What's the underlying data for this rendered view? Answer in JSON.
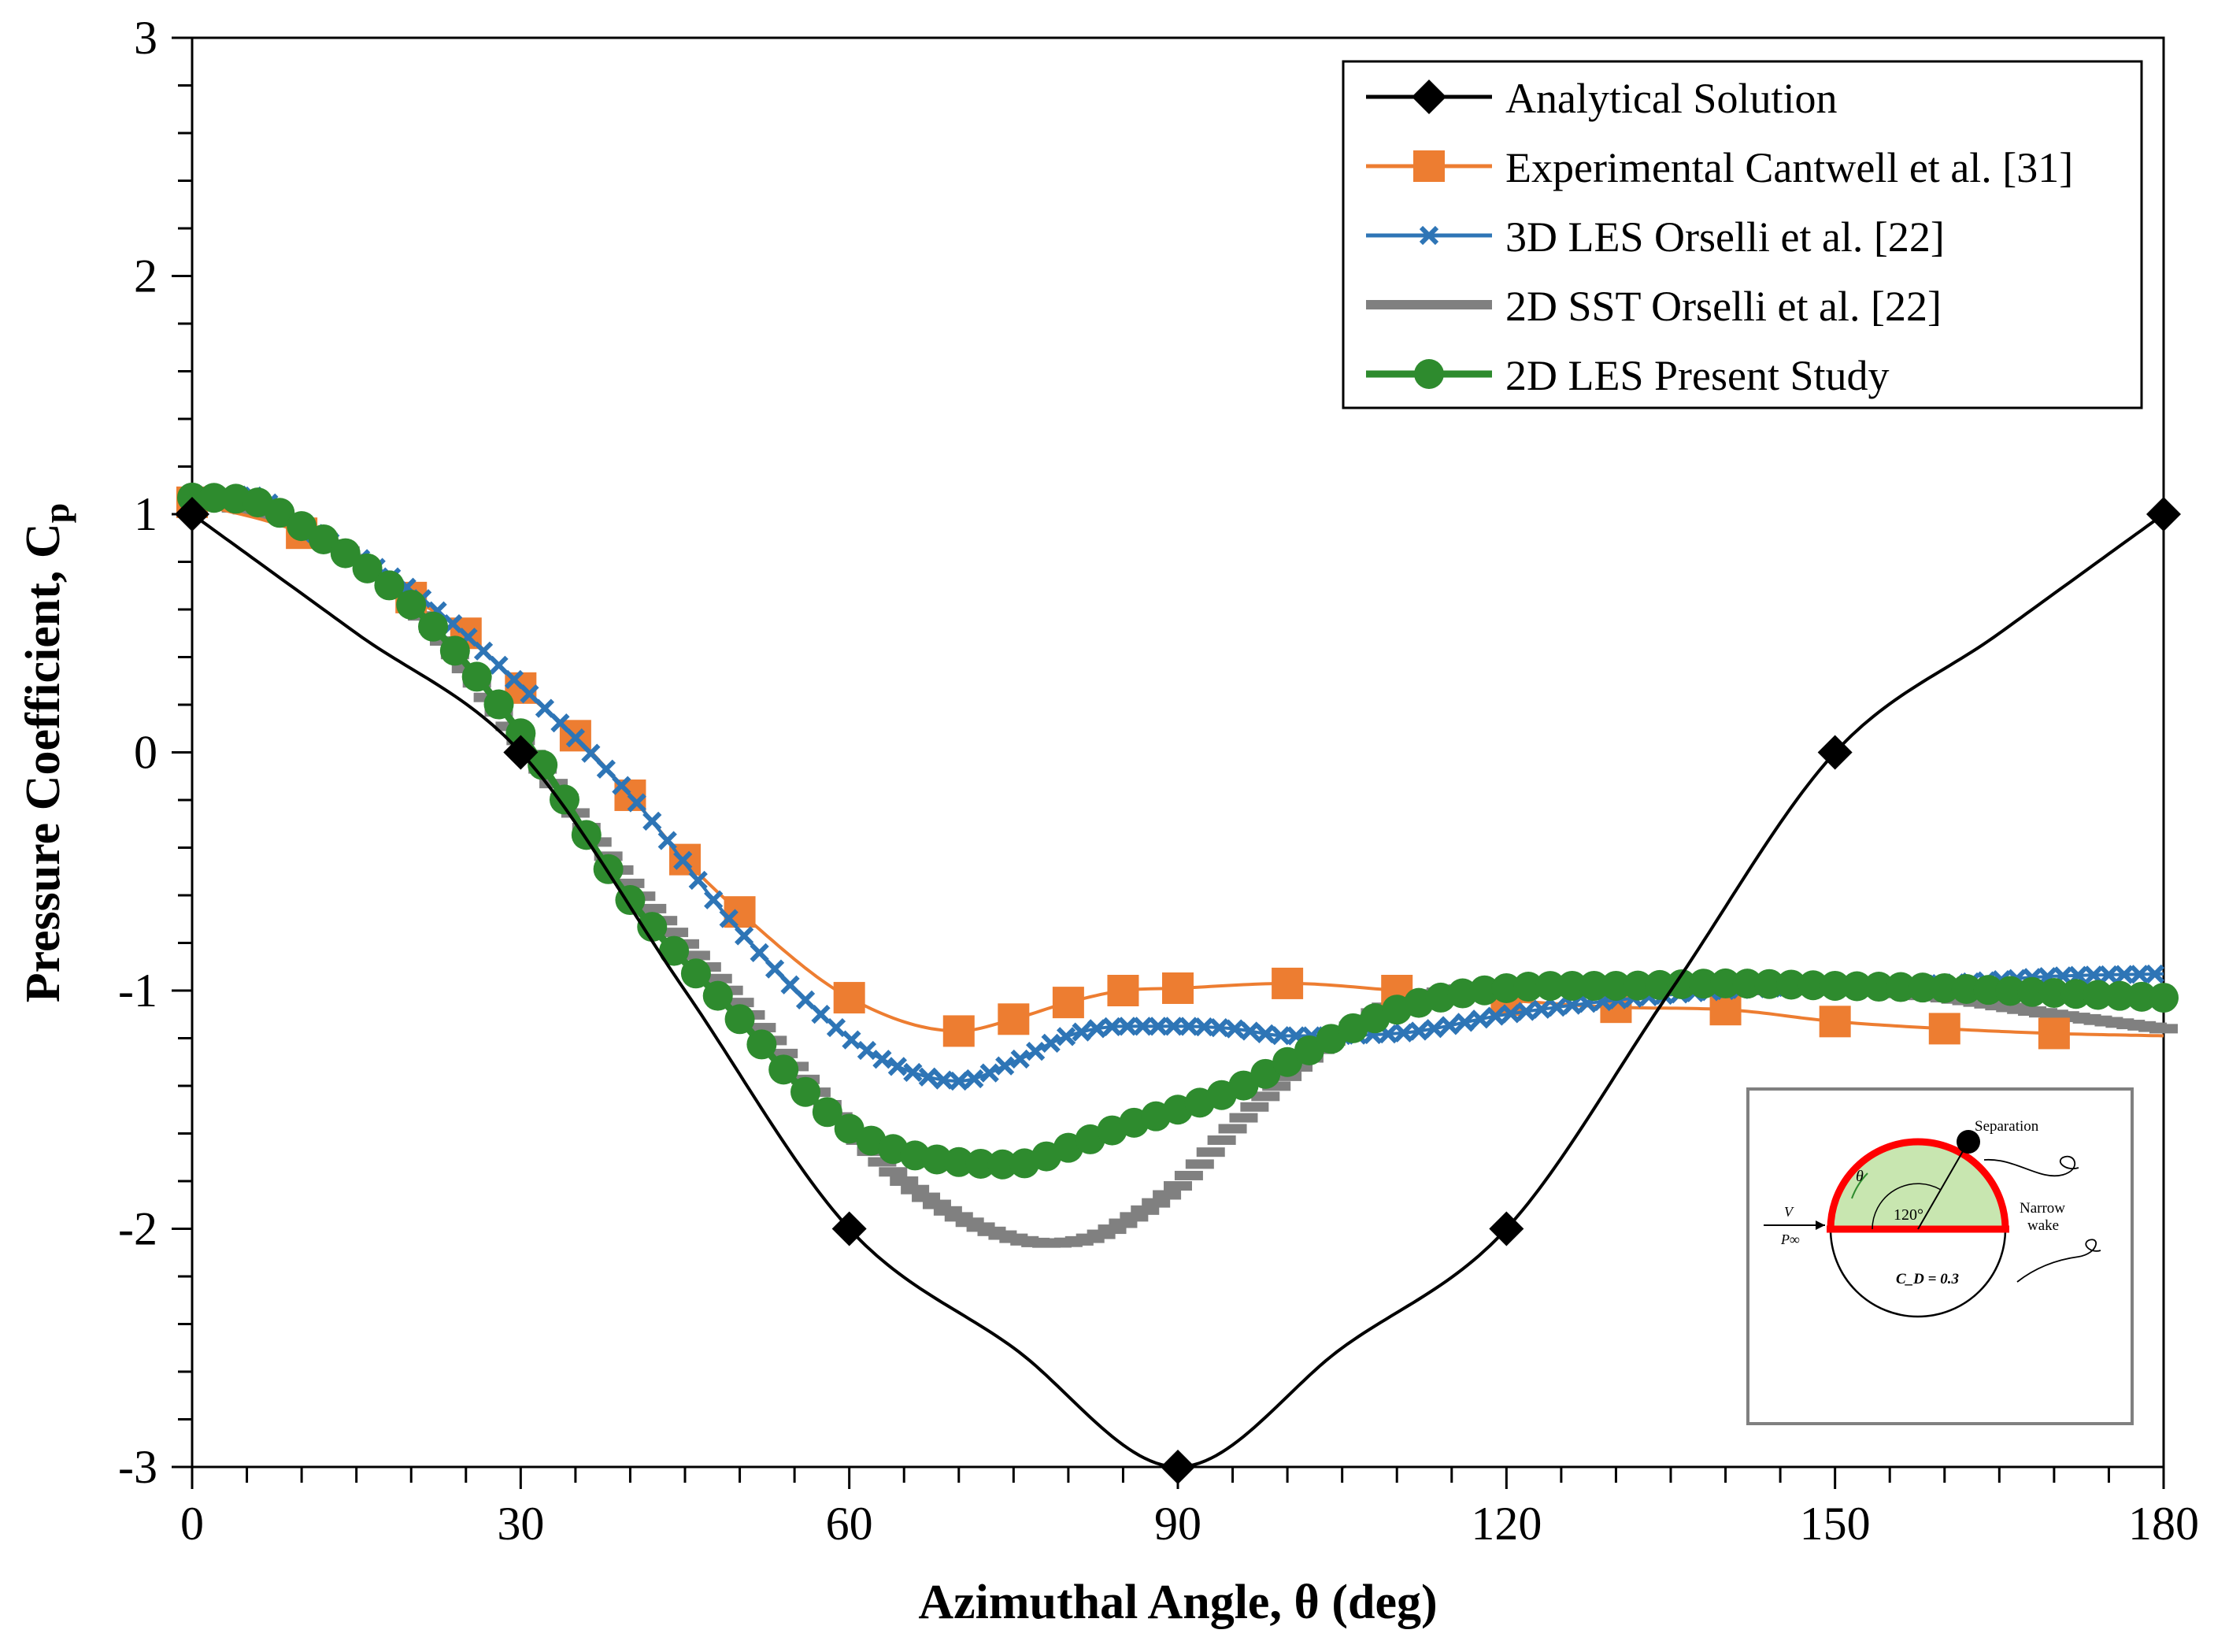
{
  "chart_data": {
    "type": "line",
    "xlabel": "Azimuthal Angle, θ (deg)",
    "ylabel": "Pressure Coefficient, C",
    "ylabel_subscript": "p",
    "xlim": [
      0,
      180
    ],
    "ylim": [
      -3,
      3
    ],
    "xticks": [
      0,
      30,
      60,
      90,
      120,
      150,
      180
    ],
    "xtick_labels": [
      "0",
      "30",
      "60",
      "90",
      "120",
      "150",
      "180"
    ],
    "yticks": [
      -3,
      -2,
      -1,
      0,
      1,
      2,
      3
    ],
    "ytick_labels": [
      "-3",
      "-2",
      "-1",
      "0",
      "1",
      "2",
      "3"
    ],
    "legend_position": "top-right",
    "series": [
      {
        "name": "Analytical Solution",
        "color": "#000000",
        "marker": "diamond",
        "x": [
          0,
          15,
          30,
          45,
          60,
          75,
          90,
          105,
          120,
          135,
          150,
          165,
          180
        ],
        "y": [
          1.0,
          0.5,
          0.0,
          -1.0,
          -2.0,
          -2.5,
          -3.0,
          -2.5,
          -2.0,
          -1.0,
          0.0,
          0.5,
          1.0
        ],
        "marker_x": [
          0,
          30,
          60,
          90,
          120,
          150,
          180
        ],
        "marker_y": [
          1.0,
          0.0,
          -2.0,
          -3.0,
          -2.0,
          0.0,
          1.0
        ]
      },
      {
        "name": "Experimental Cantwell et al. [31]",
        "color": "#ED7D31",
        "marker": "square",
        "x": [
          0,
          10,
          20,
          25,
          30,
          35,
          40,
          45,
          50,
          60,
          70,
          75,
          80,
          85,
          90,
          100,
          110,
          120,
          130,
          140,
          150,
          160,
          170,
          180
        ],
        "y": [
          1.05,
          0.92,
          0.65,
          0.5,
          0.27,
          0.07,
          -0.18,
          -0.45,
          -0.67,
          -1.03,
          -1.17,
          -1.12,
          -1.05,
          -1.0,
          -0.99,
          -0.97,
          -1.0,
          -1.04,
          -1.07,
          -1.08,
          -1.13,
          -1.16,
          -1.18,
          -1.19
        ],
        "marker_x": [
          0,
          10,
          20,
          25,
          30,
          35,
          40,
          45,
          50,
          60,
          70,
          75,
          80,
          85,
          90,
          100,
          110,
          120,
          130,
          140,
          150,
          160,
          170
        ],
        "marker_y": [
          1.05,
          0.92,
          0.65,
          0.5,
          0.27,
          0.07,
          -0.18,
          -0.45,
          -0.67,
          -1.03,
          -1.17,
          -1.12,
          -1.05,
          -1.0,
          -0.99,
          -0.97,
          -1.0,
          -1.04,
          -1.07,
          -1.08,
          -1.13,
          -1.16,
          -1.18
        ]
      },
      {
        "name": "3D LES Orselli et al. [22]",
        "color": "#2E75B6",
        "marker": "x",
        "x": [
          0,
          5,
          10,
          20,
          30,
          40,
          50,
          60,
          65,
          70,
          75,
          80,
          85,
          90,
          95,
          100,
          110,
          120,
          130,
          140,
          150,
          160,
          170,
          180
        ],
        "y": [
          1.08,
          1.08,
          0.95,
          0.68,
          0.28,
          -0.18,
          -0.75,
          -1.2,
          -1.33,
          -1.38,
          -1.3,
          -1.19,
          -1.15,
          -1.15,
          -1.16,
          -1.19,
          -1.18,
          -1.1,
          -1.04,
          -1.0,
          -0.98,
          -0.97,
          -0.94,
          -0.93
        ],
        "marker_step": 1
      },
      {
        "name": "2D SST Orselli et al. [22]",
        "color": "#808080",
        "marker": "line",
        "x": [
          0,
          10,
          20,
          30,
          40,
          50,
          60,
          65,
          70,
          75,
          78,
          82,
          86,
          90,
          95,
          100,
          105,
          110,
          115,
          120,
          130,
          140,
          150,
          160,
          170,
          180
        ],
        "y": [
          1.06,
          0.95,
          0.62,
          0.05,
          -0.55,
          -1.05,
          -1.58,
          -1.8,
          -1.95,
          -2.04,
          -2.06,
          -2.04,
          -1.95,
          -1.82,
          -1.58,
          -1.36,
          -1.18,
          -1.05,
          -1.0,
          -0.98,
          -0.98,
          -1.0,
          -1.0,
          -1.03,
          -1.1,
          -1.16
        ],
        "marker_step": 1
      },
      {
        "name": "2D LES Present Study",
        "color": "#2E8B2E",
        "marker": "circle",
        "x": [
          0,
          5,
          10,
          20,
          30,
          40,
          50,
          55,
          60,
          65,
          70,
          75,
          80,
          85,
          90,
          95,
          100,
          105,
          110,
          115,
          120,
          125,
          130,
          140,
          150,
          160,
          170,
          180
        ],
        "y": [
          1.07,
          1.06,
          0.95,
          0.62,
          0.08,
          -0.62,
          -1.12,
          -1.38,
          -1.58,
          -1.68,
          -1.72,
          -1.73,
          -1.66,
          -1.57,
          -1.5,
          -1.42,
          -1.3,
          -1.18,
          -1.08,
          -1.02,
          -0.99,
          -0.98,
          -0.98,
          -0.97,
          -0.98,
          -0.99,
          -1.01,
          -1.03
        ],
        "marker_step": 1
      }
    ]
  },
  "inset": {
    "separation_label": "Separation",
    "narrow_label": "Narrow",
    "wake_label": "wake",
    "angle_label": "120°",
    "theta_label": "θ",
    "velocity_label": "V",
    "pressure_label": "P∞",
    "drag_label": "C_D = 0.3",
    "fill_color": "#C8E6B0",
    "outline_color": "#FF0000"
  }
}
